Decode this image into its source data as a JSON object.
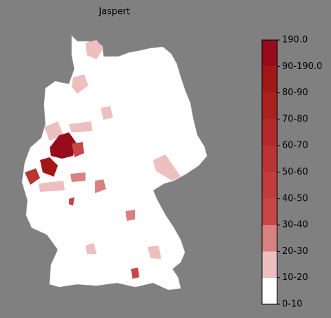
{
  "title": "Jaspert",
  "colorbar": {
    "labels": [
      "0-10",
      "10-20",
      "20-30",
      "30-40",
      "40-50",
      "50-60",
      "60-70",
      "70-80",
      "80-90",
      "90-190.0",
      "190.0"
    ],
    "colors": [
      "#ffffff",
      "#eebfbf",
      "#d98080",
      "#c84646",
      "#c23c3c",
      "#bb3333",
      "#b42a2a",
      "#ac2020",
      "#a31717",
      "#970c1c"
    ]
  }
}
